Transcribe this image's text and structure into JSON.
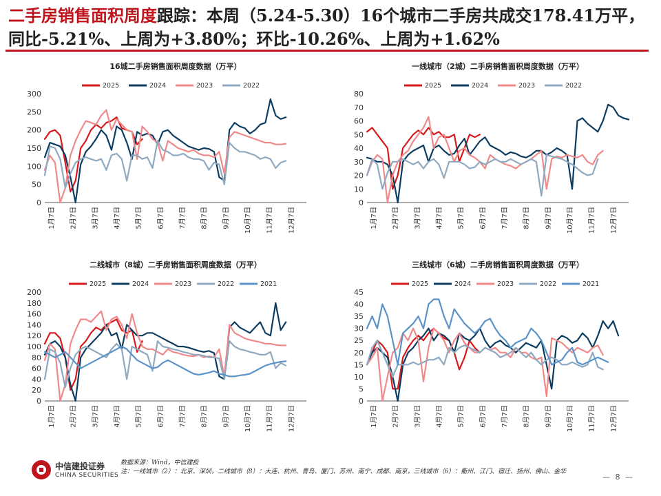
{
  "headline": {
    "red_part": "二手房销售面积周度",
    "rest": "跟踪：本周（5.24-5.30）16个城市二手房共成交178.41万平，同比-5.21%、上周为+3.80%；环比-10.26%、上周为+1.62%"
  },
  "colors": {
    "2025": "#d7191c",
    "2024": "#0d3c61",
    "2023": "#f0898a",
    "2022": "#8fa9c1",
    "2021": "#5b93c8",
    "accent": "#c0141c"
  },
  "x_labels": [
    "1月7日",
    "2月7日",
    "3月7日",
    "4月7日",
    "5月7日",
    "6月7日",
    "7月7日",
    "8月7日",
    "9月7日",
    "10月7日",
    "11月7日",
    "12月7日"
  ],
  "chart_data": [
    {
      "type": "line",
      "title": "16城二手房销售面积周度数据（万平）",
      "ylim": [
        0,
        300
      ],
      "yticks": [
        0,
        50,
        100,
        150,
        200,
        250,
        300
      ],
      "series": [
        {
          "name": "2025",
          "values": [
            175,
            195,
            200,
            185,
            110,
            30,
            60,
            150,
            170,
            200,
            215,
            205,
            220,
            225,
            235,
            205,
            200,
            195,
            160,
            175
          ]
        },
        {
          "name": "2024",
          "values": [
            125,
            165,
            160,
            155,
            130,
            70,
            0,
            105,
            140,
            155,
            175,
            200,
            185,
            145,
            210,
            200,
            165,
            120,
            195,
            185,
            190,
            185,
            160,
            195,
            200,
            185,
            175,
            165,
            155,
            150,
            145,
            150,
            148,
            140,
            70,
            60,
            200,
            220,
            210,
            205,
            190,
            200,
            215,
            220,
            285,
            240,
            230,
            235
          ]
        },
        {
          "name": "2023",
          "values": [
            90,
            130,
            110,
            0,
            40,
            130,
            170,
            200,
            225,
            220,
            215,
            240,
            255,
            200,
            230,
            215,
            200,
            195,
            120,
            210,
            195,
            175,
            165,
            115,
            170,
            160,
            150,
            145,
            140,
            145,
            135,
            130,
            130,
            125,
            140,
            80,
            180,
            195,
            190,
            185,
            180,
            175,
            170,
            165,
            165,
            160,
            160,
            162
          ]
        },
        {
          "name": "2022",
          "values": [
            75,
            155,
            150,
            120,
            40,
            80,
            110,
            120,
            125,
            120,
            115,
            120,
            90,
            130,
            135,
            120,
            60,
            130,
            130,
            120,
            125,
            95,
            170,
            145,
            140,
            130,
            130,
            135,
            125,
            120,
            120,
            115,
            90,
            110,
            105,
            50,
            165,
            150,
            140,
            140,
            135,
            130,
            120,
            125,
            120,
            95,
            110,
            115
          ]
        }
      ]
    },
    {
      "type": "line",
      "title": "一线城市（2城）二手房销售面积周度数据（万平）",
      "ylim": [
        0,
        80
      ],
      "yticks": [
        0,
        10,
        20,
        30,
        40,
        50,
        60,
        70,
        80
      ],
      "series": [
        {
          "name": "2025",
          "values": [
            52,
            55,
            50,
            45,
            40,
            10,
            20,
            40,
            45,
            50,
            53,
            50,
            55,
            50,
            52,
            48,
            48,
            50,
            30,
            40,
            50,
            48,
            50
          ]
        },
        {
          "name": "2024",
          "values": [
            33,
            32,
            30,
            30,
            28,
            20,
            0,
            30,
            35,
            38,
            40,
            42,
            30,
            40,
            42,
            38,
            35,
            36,
            42,
            47,
            35,
            40,
            45,
            48,
            42,
            40,
            38,
            35,
            37,
            36,
            34,
            33,
            35,
            38,
            38,
            35,
            37,
            40,
            38,
            35,
            10,
            60,
            62,
            58,
            55,
            52,
            60,
            72,
            70,
            64,
            62,
            61
          ]
        },
        {
          "name": "2023",
          "values": [
            20,
            30,
            35,
            32,
            0,
            20,
            30,
            35,
            38,
            45,
            50,
            55,
            63,
            40,
            48,
            50,
            40,
            30,
            38,
            40,
            35,
            33,
            30,
            25,
            35,
            32,
            30,
            28,
            27,
            25,
            28,
            30,
            32,
            35,
            38,
            10,
            32,
            34,
            33,
            35,
            34,
            33,
            35,
            30,
            28,
            35,
            38
          ]
        },
        {
          "name": "2022",
          "values": [
            20,
            32,
            28,
            10,
            22,
            30,
            30,
            32,
            30,
            28,
            30,
            25,
            30,
            32,
            28,
            18,
            30,
            30,
            30,
            28,
            25,
            26,
            30,
            28,
            30,
            32,
            30,
            30,
            32,
            30,
            28,
            30,
            32,
            30,
            5,
            35,
            34,
            33,
            32,
            30,
            28,
            25,
            22,
            20,
            21,
            32
          ]
        }
      ]
    },
    {
      "type": "line",
      "title": "二线城市（8城）二手房销售面积周度数据（万平）",
      "ylim": [
        0,
        200
      ],
      "yticks": [
        0,
        20,
        40,
        60,
        80,
        100,
        120,
        140,
        160,
        180,
        200
      ],
      "series": [
        {
          "name": "2025",
          "values": [
            105,
            125,
            125,
            115,
            80,
            20,
            40,
            100,
            110,
            125,
            135,
            130,
            140,
            145,
            150,
            130,
            125,
            130,
            90,
            110
          ]
        },
        {
          "name": "2024",
          "values": [
            85,
            105,
            110,
            100,
            80,
            30,
            0,
            80,
            95,
            105,
            115,
            125,
            140,
            120,
            125,
            95,
            140,
            130,
            120,
            120,
            125,
            125,
            120,
            115,
            110,
            105,
            100,
            100,
            98,
            95,
            92,
            90,
            92,
            88,
            45,
            40,
            135,
            145,
            135,
            130,
            125,
            135,
            145,
            125,
            120,
            180,
            130,
            145
          ]
        },
        {
          "name": "2023",
          "values": [
            75,
            105,
            95,
            0,
            30,
            105,
            130,
            150,
            150,
            145,
            155,
            165,
            130,
            150,
            155,
            140,
            115,
            160,
            125,
            100,
            95,
            95,
            90,
            85,
            95,
            90,
            88,
            85,
            83,
            82,
            85,
            80,
            82,
            80,
            95,
            45,
            140,
            125,
            120,
            115,
            112,
            110,
            108,
            105,
            105,
            103,
            102,
            102
          ]
        },
        {
          "name": "2022",
          "values": [
            40,
            95,
            90,
            70,
            25,
            60,
            85,
            95,
            100,
            95,
            90,
            85,
            80,
            95,
            105,
            95,
            40,
            100,
            95,
            90,
            85,
            55,
            110,
            100,
            98,
            95,
            93,
            90,
            88,
            85,
            85,
            83,
            80,
            80,
            78,
            40,
            110,
            100,
            95,
            93,
            90,
            88,
            85,
            85,
            90,
            60,
            70,
            65
          ]
        },
        {
          "name": "2021",
          "values": [
            90,
            85,
            80,
            85,
            90,
            80,
            70,
            60,
            65,
            70,
            75,
            80,
            85,
            90,
            95,
            100,
            95,
            85,
            75,
            70,
            65,
            60,
            62,
            70,
            75,
            70,
            65,
            60,
            55,
            50,
            48,
            50,
            52,
            55,
            50,
            48,
            45,
            45,
            47,
            48,
            50,
            55,
            60,
            65,
            68,
            70,
            72,
            73
          ]
        }
      ]
    },
    {
      "type": "line",
      "title": "三线城市（6城）二手房销售面积周度数据（万平）",
      "ylim": [
        0,
        45
      ],
      "yticks": [
        0,
        5,
        10,
        15,
        20,
        25,
        30,
        35,
        40,
        45
      ],
      "series": [
        {
          "name": "2025",
          "values": [
            15,
            20,
            25,
            23,
            20,
            5,
            5,
            18,
            22,
            25,
            27,
            25,
            28,
            30,
            28,
            26,
            25,
            20,
            13,
            18,
            25,
            22,
            20
          ]
        },
        {
          "name": "2024",
          "values": [
            15,
            20,
            22,
            20,
            18,
            10,
            0,
            15,
            20,
            22,
            25,
            27,
            30,
            25,
            28,
            27,
            25,
            20,
            28,
            26,
            25,
            27,
            30,
            25,
            22,
            24,
            25,
            23,
            22,
            20,
            22,
            24,
            23,
            22,
            25,
            15,
            5,
            25,
            27,
            26,
            24,
            25,
            28,
            26,
            22,
            27,
            33,
            30,
            33,
            27
          ]
        },
        {
          "name": "2023",
          "values": [
            15,
            18,
            22,
            0,
            10,
            20,
            22,
            28,
            25,
            30,
            25,
            8,
            22,
            30,
            28,
            25,
            20,
            25,
            28,
            24,
            22,
            20,
            20,
            22,
            21,
            22,
            20,
            20,
            18,
            22,
            20,
            20,
            18,
            17,
            18,
            2,
            26,
            25,
            24,
            22,
            20,
            22,
            21,
            20,
            22,
            23,
            19
          ]
        },
        {
          "name": "2022",
          "values": [
            15,
            22,
            25,
            20,
            15,
            10,
            15,
            15,
            15,
            16,
            15,
            16,
            17,
            17,
            18,
            15,
            22,
            20,
            22,
            23,
            22,
            21,
            20,
            22,
            21,
            20,
            18,
            19,
            20,
            22,
            20,
            18,
            20,
            17,
            15,
            17,
            18,
            17,
            15,
            15,
            16,
            15,
            14,
            15,
            20,
            14,
            13
          ]
        },
        {
          "name": "2021",
          "values": [
            30,
            35,
            30,
            40,
            35,
            25,
            15,
            28,
            30,
            32,
            35,
            30,
            40,
            42,
            42,
            35,
            30,
            38,
            35,
            32,
            30,
            28,
            30,
            33,
            34,
            30,
            27,
            25,
            22,
            24,
            25,
            26,
            30,
            28,
            25,
            20,
            15,
            16,
            17,
            20,
            22,
            16,
            15,
            16,
            17,
            18,
            17,
            16
          ]
        }
      ]
    }
  ],
  "footer": {
    "brand_cn": "中信建投证券",
    "brand_en": "CHINA SECURITIES",
    "source": "数据来源：Wind，中信建投",
    "note": "注：一线城市（2）：北京、深圳，二线城市（8）：大连、杭州、青岛、厦门、苏州、南宁、成都、南京，三线城市（6）：衢州、江门、宿迁、扬州、佛山、金华",
    "page": "— 8 —"
  }
}
